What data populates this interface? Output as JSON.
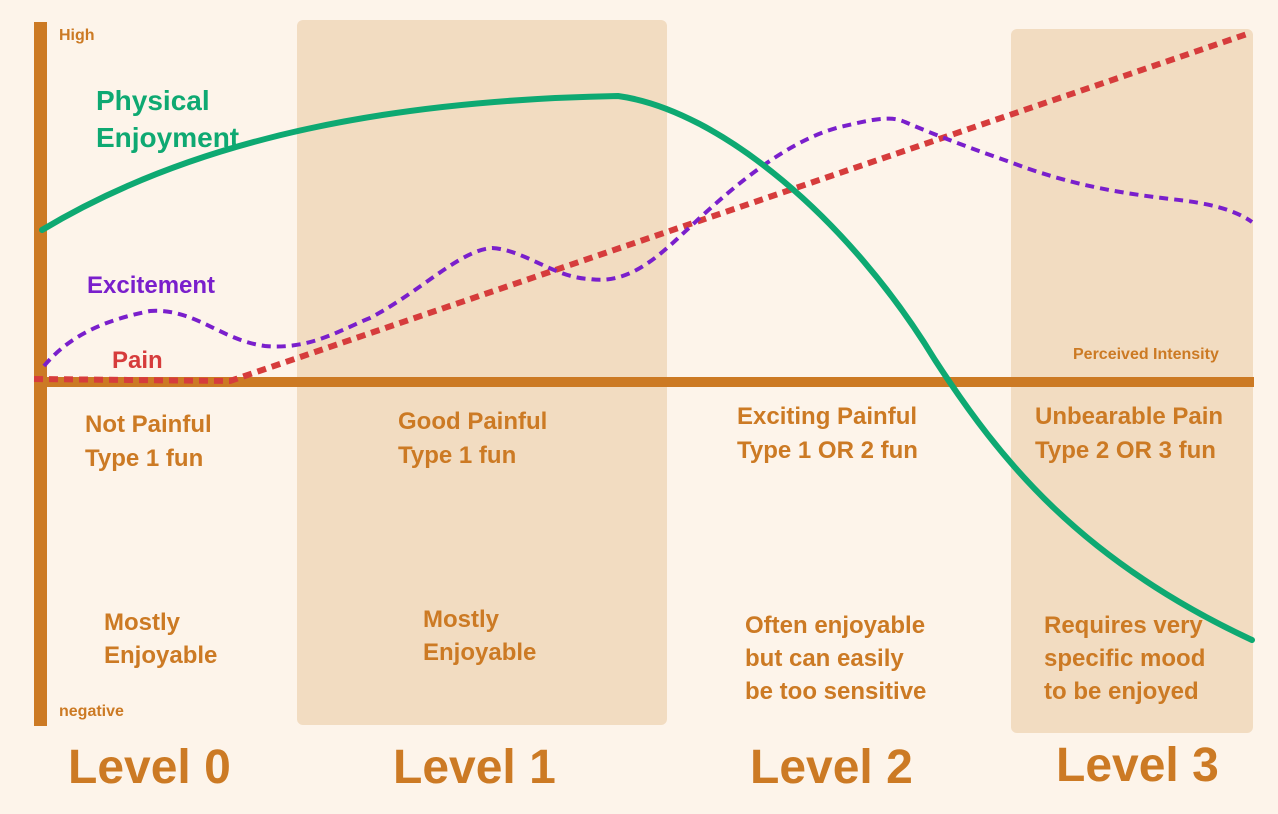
{
  "colors": {
    "background": "#fdf4ea",
    "band": "#f2dcc1",
    "axis": "#cc7a24",
    "physical_enjoyment": "#0ea972",
    "excitement": "#7a1fcc",
    "pain": "#d63c3c"
  },
  "axis": {
    "y_top_label": "High",
    "y_bottom_label": "negative",
    "x_label": "Perceived  Intensity"
  },
  "series": [
    {
      "name_line1": "Physical",
      "name_line2": "Enjoyment"
    },
    {
      "name": "Excitement"
    },
    {
      "name": "Pain"
    }
  ],
  "levels": [
    {
      "label": "Level 0",
      "category_line1": "Not Painful",
      "category_line2": "Type 1 fun",
      "note_lines": [
        "Mostly",
        "Enjoyable"
      ]
    },
    {
      "label": "Level 1",
      "category_line1": "Good Painful",
      "category_line2": "Type 1 fun",
      "note_lines": [
        "Mostly",
        "Enjoyable"
      ]
    },
    {
      "label": "Level 2",
      "category_line1": "Exciting Painful",
      "category_line2": "Type 1 OR 2 fun",
      "note_lines": [
        "Often enjoyable",
        "but can easily",
        "be too sensitive"
      ]
    },
    {
      "label": "Level 3",
      "category_line1": "Unbearable Pain",
      "category_line2": "Type 2 OR 3 fun",
      "note_lines": [
        "Requires very",
        "specific mood",
        "to be enjoyed"
      ]
    }
  ],
  "shaded_levels": [
    1,
    3
  ]
}
